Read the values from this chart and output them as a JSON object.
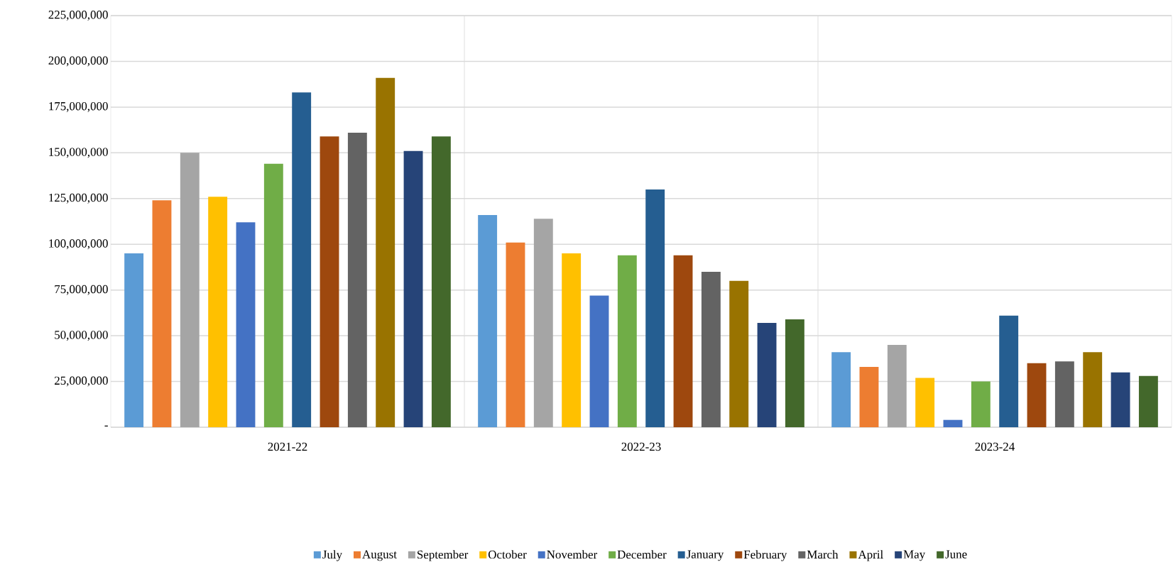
{
  "chart_data": {
    "type": "bar",
    "categories": [
      "2021-22",
      "2022-23",
      "2023-24"
    ],
    "series": [
      {
        "name": "July",
        "color": "#5b9bd5",
        "values": [
          95000000,
          116000000,
          41000000
        ]
      },
      {
        "name": "August",
        "color": "#ed7d31",
        "values": [
          124000000,
          101000000,
          33000000
        ]
      },
      {
        "name": "September",
        "color": "#a5a5a5",
        "values": [
          150000000,
          114000000,
          45000000
        ]
      },
      {
        "name": "October",
        "color": "#ffc000",
        "values": [
          126000000,
          95000000,
          27000000
        ]
      },
      {
        "name": "November",
        "color": "#4472c4",
        "values": [
          112000000,
          72000000,
          4000000
        ]
      },
      {
        "name": "December",
        "color": "#70ad47",
        "values": [
          144000000,
          94000000,
          25000000
        ]
      },
      {
        "name": "January",
        "color": "#255e91",
        "values": [
          183000000,
          130000000,
          61000000
        ]
      },
      {
        "name": "February",
        "color": "#9e480e",
        "values": [
          159000000,
          94000000,
          35000000
        ]
      },
      {
        "name": "March",
        "color": "#636363",
        "values": [
          161000000,
          85000000,
          36000000
        ]
      },
      {
        "name": "April",
        "color": "#997300",
        "values": [
          191000000,
          80000000,
          41000000
        ]
      },
      {
        "name": "May",
        "color": "#264478",
        "values": [
          151000000,
          57000000,
          30000000
        ]
      },
      {
        "name": "June",
        "color": "#43682b",
        "values": [
          159000000,
          59000000,
          28000000
        ]
      }
    ],
    "ylim": [
      0,
      225000000
    ],
    "yticks": [
      {
        "value": 0,
        "label": "-"
      },
      {
        "value": 25000000,
        "label": "25,000,000"
      },
      {
        "value": 50000000,
        "label": "50,000,000"
      },
      {
        "value": 75000000,
        "label": "75,000,000"
      },
      {
        "value": 100000000,
        "label": "100,000,000"
      },
      {
        "value": 125000000,
        "label": "125,000,000"
      },
      {
        "value": 150000000,
        "label": "150,000,000"
      },
      {
        "value": 175000000,
        "label": "175,000,000"
      },
      {
        "value": 200000000,
        "label": "200,000,000"
      },
      {
        "value": 225000000,
        "label": "225,000,000"
      }
    ],
    "grid": true,
    "legend": "bottom"
  }
}
